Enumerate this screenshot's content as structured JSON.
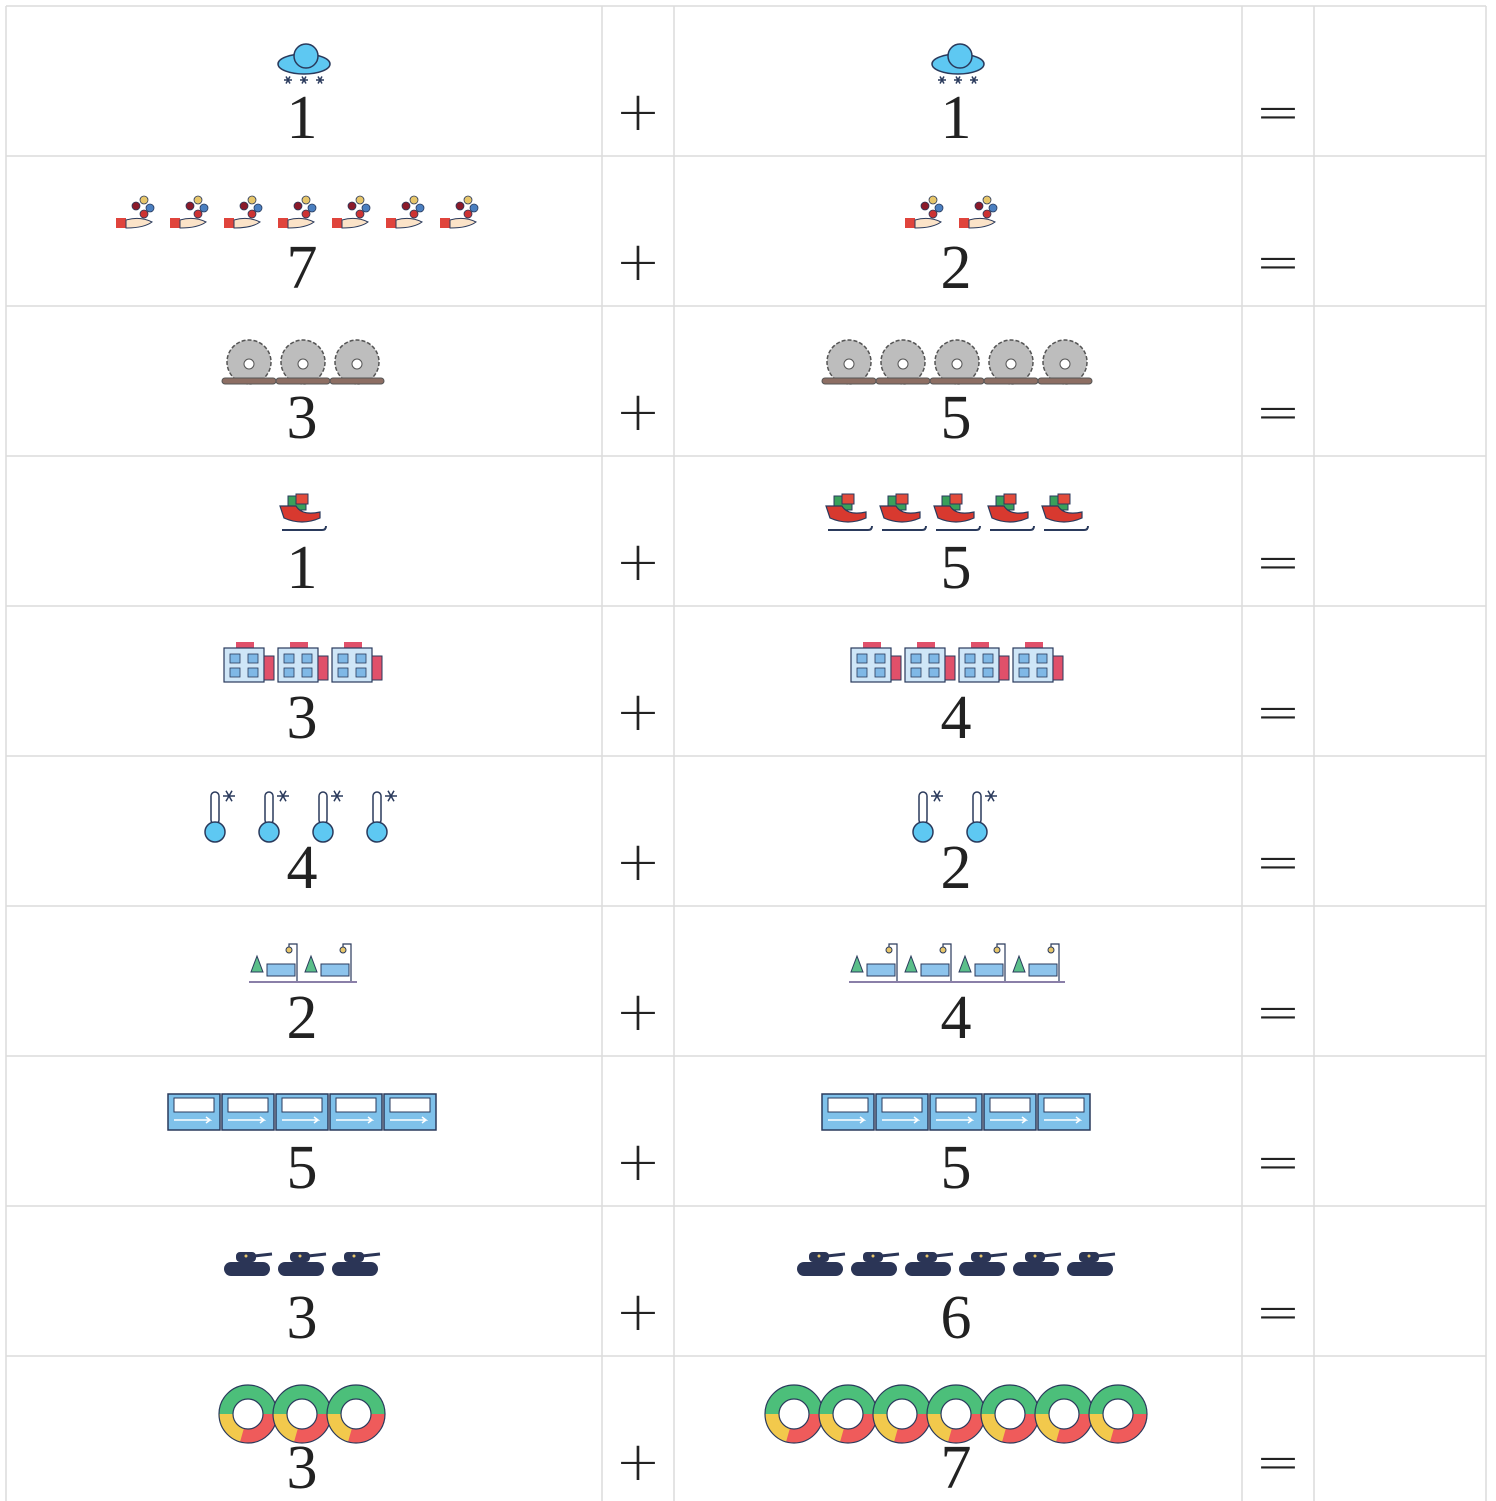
{
  "rows": [
    {
      "left": 1,
      "operator": "+",
      "right": 1,
      "equals": "="
    },
    {
      "left": 7,
      "operator": "+",
      "right": 2,
      "equals": "="
    },
    {
      "left": 3,
      "operator": "+",
      "right": 5,
      "equals": "="
    },
    {
      "left": 1,
      "operator": "+",
      "right": 5,
      "equals": "="
    },
    {
      "left": 3,
      "operator": "+",
      "right": 4,
      "equals": "="
    },
    {
      "left": 4,
      "operator": "+",
      "right": 2,
      "equals": "="
    },
    {
      "left": 2,
      "operator": "+",
      "right": 4,
      "equals": "="
    },
    {
      "left": 5,
      "operator": "+",
      "right": 5,
      "equals": "="
    },
    {
      "left": 3,
      "operator": "+",
      "right": 6,
      "equals": "="
    },
    {
      "left": 3,
      "operator": "+",
      "right": 7,
      "equals": "="
    }
  ]
}
